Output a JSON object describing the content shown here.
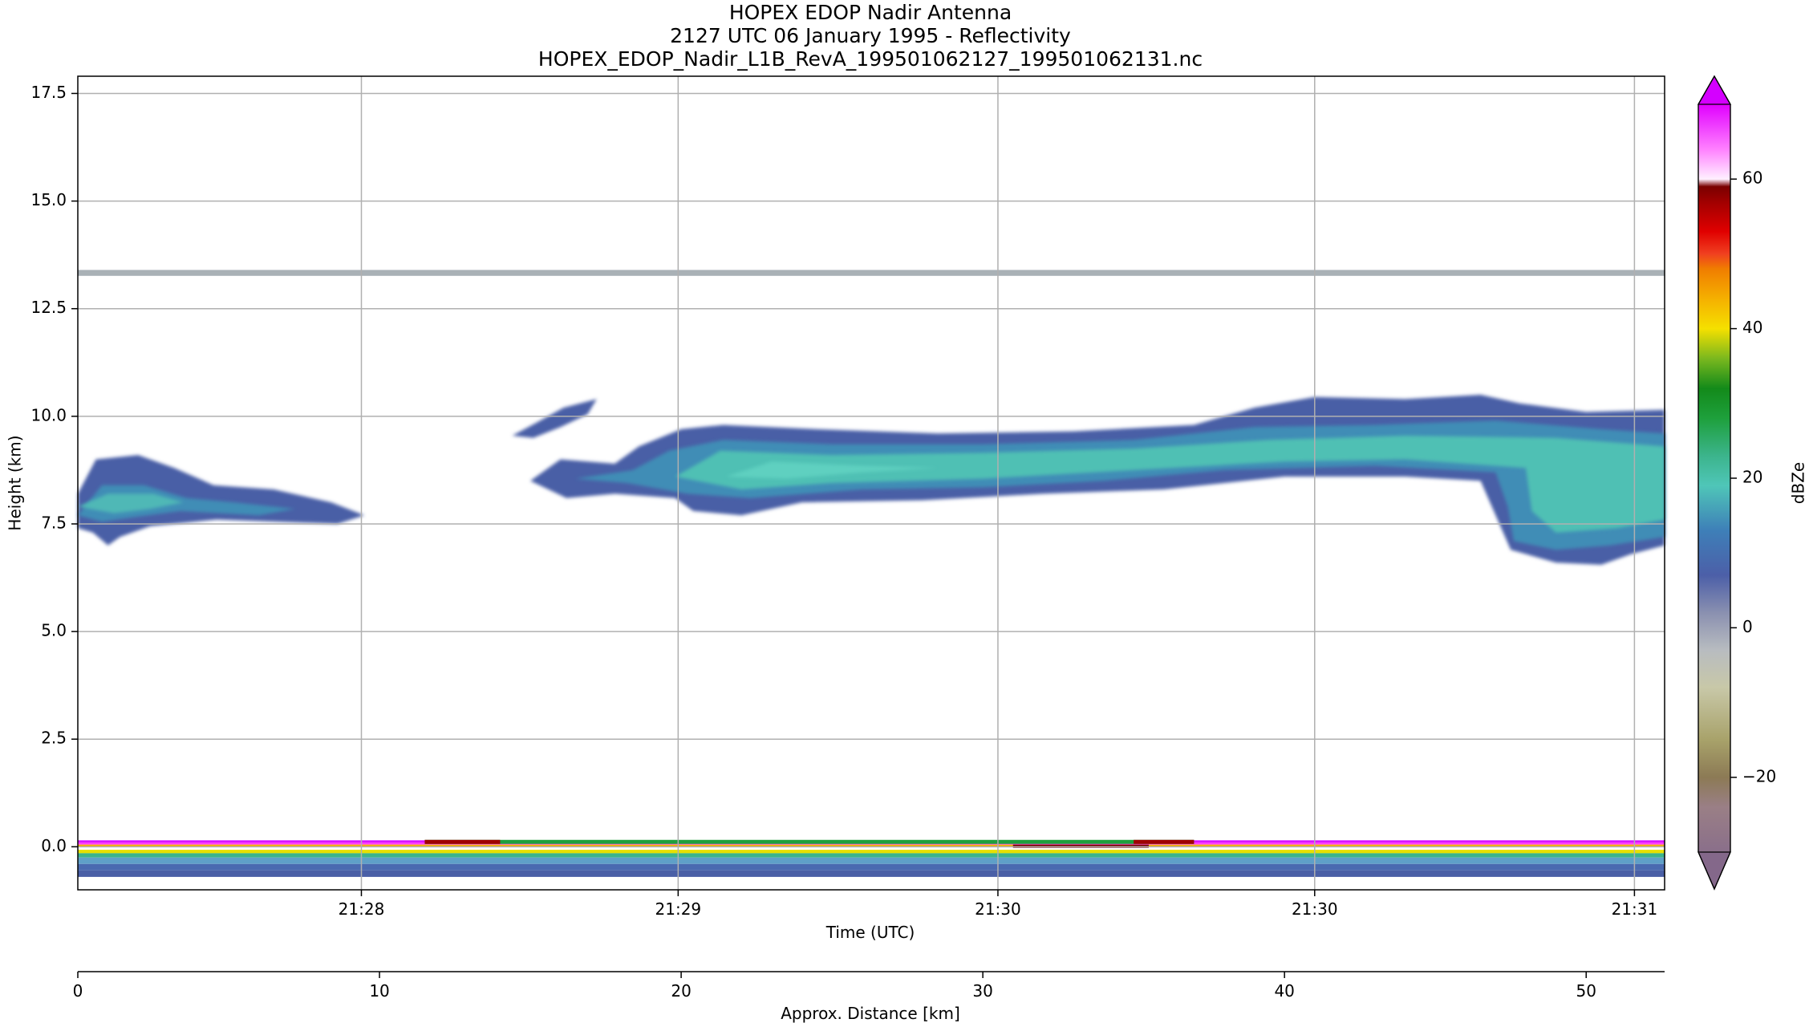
{
  "titles": {
    "line1": "HOPEX EDOP Nadir Antenna",
    "line2": "2127 UTC 06 January 1995 - Reflectivity",
    "line3": "HOPEX_EDOP_Nadir_L1B_RevA_199501062127_199501062131.nc"
  },
  "chart_data": {
    "type": "heatmap",
    "title": "HOPEX EDOP Nadir Antenna\n2127 UTC 06 January 1995 - Reflectivity\nHOPEX_EDOP_Nadir_L1B_RevA_199501062127_199501062131.nc",
    "ylabel": "Height (km)",
    "xlabel": "Time (UTC)",
    "x2label": "Approx. Distance [km]",
    "ylim": [
      -1.0,
      17.9
    ],
    "yticks": [
      0.0,
      2.5,
      5.0,
      7.5,
      10.0,
      12.5,
      15.0,
      17.5
    ],
    "ytick_labels": [
      "0.0",
      "2.5",
      "5.0",
      "7.5",
      "10.0",
      "12.5",
      "15.0",
      "17.5"
    ],
    "xlim_distance_km": [
      0,
      52.6
    ],
    "time_ticks_distance_km": [
      9.4,
      19.9,
      30.5,
      41.0,
      51.6
    ],
    "time_tick_labels": [
      "21:28",
      "21:29",
      "21:30",
      "21:30",
      "21:31"
    ],
    "distance_ticks": [
      0,
      10,
      20,
      30,
      40,
      50
    ],
    "distance_tick_labels": [
      "0",
      "10",
      "20",
      "30",
      "40",
      "50"
    ],
    "grid": true,
    "colorbar": {
      "label": "dBZe",
      "range": [
        -30,
        70
      ],
      "ticks": [
        -20,
        0,
        20,
        40,
        60
      ],
      "tick_labels": [
        "−20",
        "0",
        "20",
        "40",
        "60"
      ],
      "extend": "both"
    },
    "features": [
      {
        "name": "cloud layer (left)",
        "x_km": [
          0,
          9.5
        ],
        "height_km": [
          7.0,
          9.1
        ],
        "dbz_max": 18
      },
      {
        "name": "small cloud fragment",
        "x_km": [
          14.4,
          17.2
        ],
        "height_km": [
          9.5,
          10.4
        ],
        "dbz_max": 8
      },
      {
        "name": "main cloud layer",
        "x_km": [
          15.0,
          52.6
        ],
        "height_km": [
          6.5,
          10.6
        ],
        "dbz_max": 20
      },
      {
        "name": "thin echo line",
        "x_km": [
          0,
          52.6
        ],
        "height_km": [
          13.3,
          13.4
        ],
        "dbz_max": -5
      },
      {
        "name": "surface echo",
        "x_km": [
          0,
          52.6
        ],
        "height_km": [
          -0.7,
          0.15
        ],
        "dbz_max": 70
      }
    ]
  }
}
